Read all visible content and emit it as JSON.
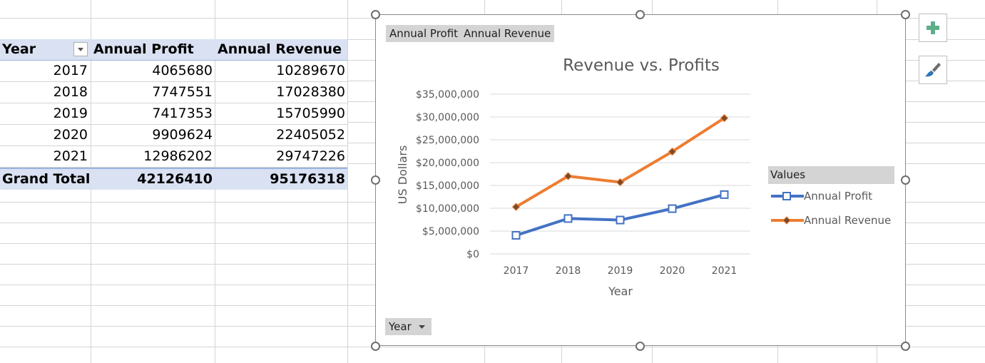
{
  "pivot": {
    "headers": {
      "year": "Year",
      "profit": "Annual Profit",
      "revenue": "Annual Revenue"
    },
    "rows": [
      {
        "year": "2017",
        "profit": "4065680",
        "revenue": "10289670"
      },
      {
        "year": "2018",
        "profit": "7747551",
        "revenue": "17028380"
      },
      {
        "year": "2019",
        "profit": "7417353",
        "revenue": "15705990"
      },
      {
        "year": "2020",
        "profit": "9909624",
        "revenue": "22405052"
      },
      {
        "year": "2021",
        "profit": "12986202",
        "revenue": "29747226"
      }
    ],
    "total": {
      "label": "Grand Total",
      "profit": "42126410",
      "revenue": "95176318"
    }
  },
  "chart_fields": {
    "value_buttons": [
      "Annual Profit",
      "Annual Revenue"
    ],
    "axis_button": "Year",
    "legend_title": "Values"
  },
  "side_buttons": {
    "add": "plus-icon",
    "style": "brush-icon"
  },
  "chart_data": {
    "type": "line",
    "title": "Revenue vs. Profits",
    "xlabel": "Year",
    "ylabel": "US Dollars",
    "categories": [
      "2017",
      "2018",
      "2019",
      "2020",
      "2021"
    ],
    "ylim": [
      0,
      35000000
    ],
    "yticks": [
      {
        "value": 0,
        "label": "$0"
      },
      {
        "value": 5000000,
        "label": "$5,000,000"
      },
      {
        "value": 10000000,
        "label": "$10,000,000"
      },
      {
        "value": 15000000,
        "label": "$15,000,000"
      },
      {
        "value": 20000000,
        "label": "$20,000,000"
      },
      {
        "value": 25000000,
        "label": "$25,000,000"
      },
      {
        "value": 30000000,
        "label": "$30,000,000"
      },
      {
        "value": 35000000,
        "label": "$35,000,000"
      }
    ],
    "grid": true,
    "legend_position": "right",
    "series": [
      {
        "name": "Annual Profit",
        "color": "#4472c4",
        "marker": "square-open",
        "values": [
          4065680,
          7747551,
          7417353,
          9909624,
          12986202
        ]
      },
      {
        "name": "Annual Revenue",
        "color": "#ed7d31",
        "marker": "diamond",
        "values": [
          10289670,
          17028380,
          15705990,
          22405052,
          29747226
        ]
      }
    ]
  }
}
